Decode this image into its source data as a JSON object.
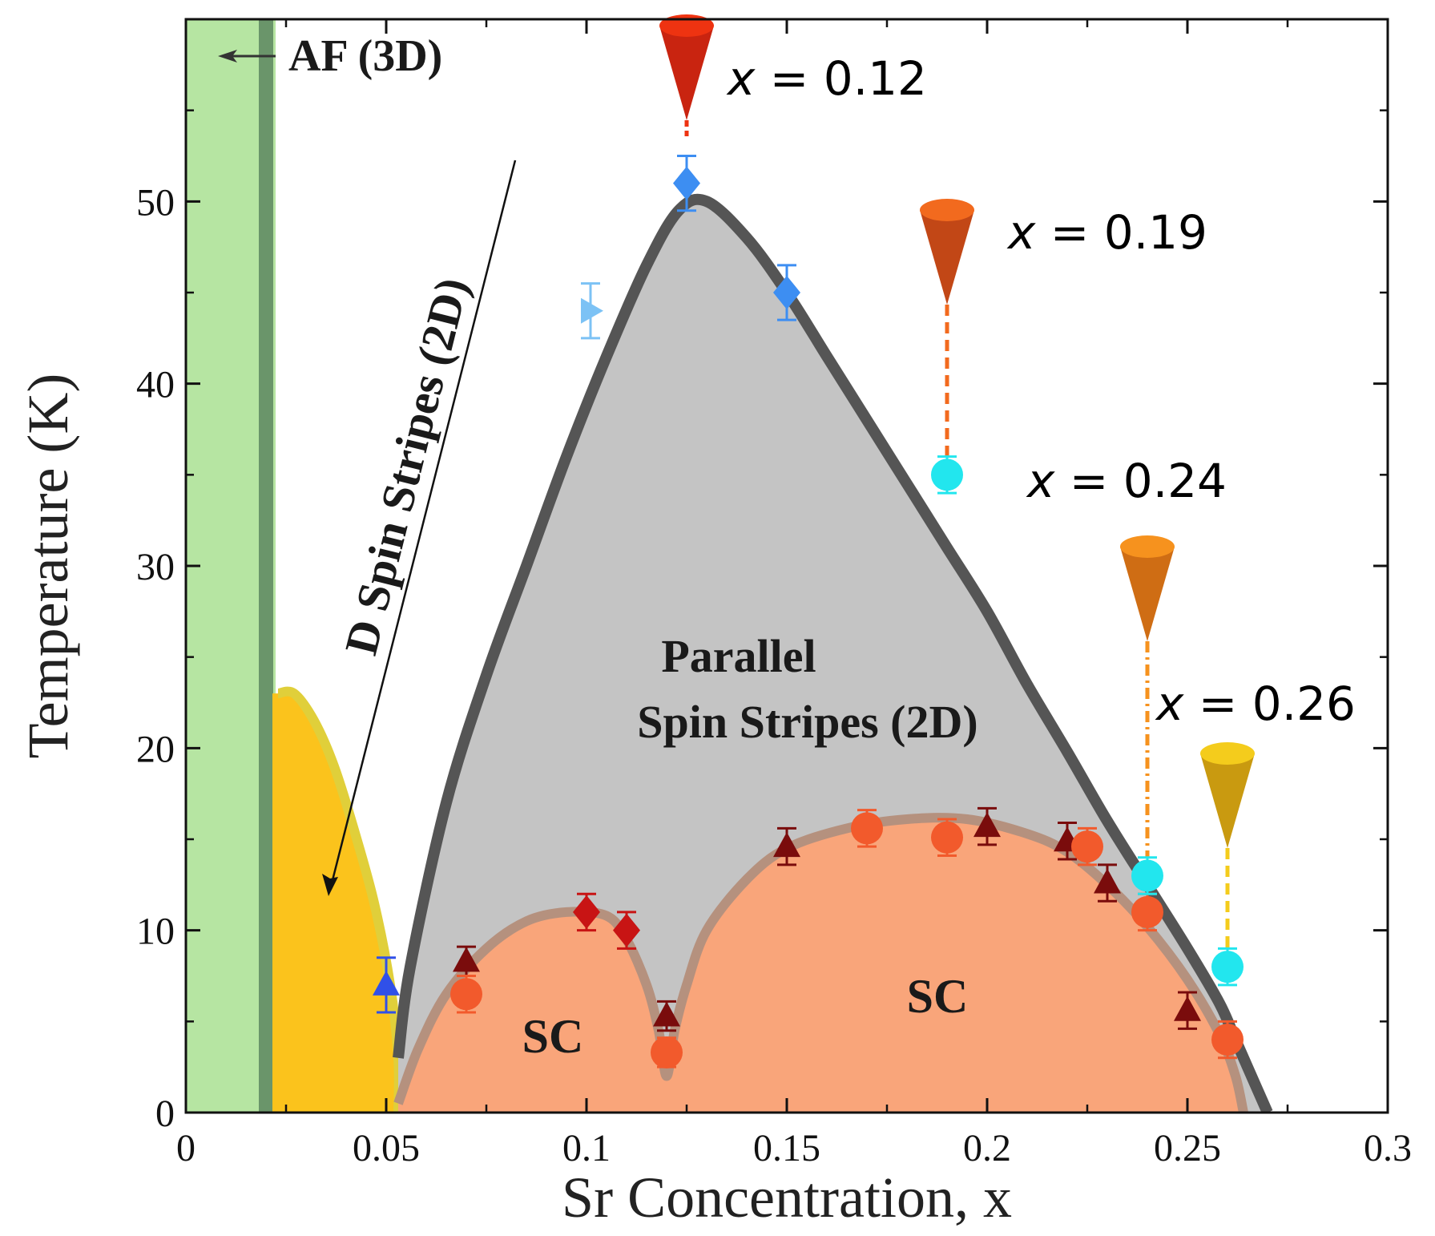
{
  "chart_data": {
    "type": "scatter",
    "xlabel": "Sr Concentration, x",
    "ylabel": "Temperature (K)",
    "xlim": [
      0,
      0.3
    ],
    "ylim": [
      0,
      60
    ],
    "x_ticks": [
      "0",
      "0.05",
      "0.1",
      "0.15",
      "0.2",
      "0.25",
      "0.3"
    ],
    "x_tick_values": [
      0,
      0.05,
      0.1,
      0.15,
      0.2,
      0.25,
      0.3
    ],
    "y_ticks": [
      "0",
      "10",
      "20",
      "30",
      "40",
      "50"
    ],
    "y_tick_values": [
      0,
      10,
      20,
      30,
      40,
      50
    ],
    "colors": {
      "af": "#b6e5a2",
      "af_line": "#6a956a",
      "diagonal": "#fbc31c",
      "diagonal_edge": "#e0cf3a",
      "parallel": "#c4c4c4",
      "parallel_line": "#555555",
      "sc": "#f9a57a",
      "sc_line": "#b5917e"
    },
    "regions": {
      "af": "AF (3D)",
      "diagonal_prefix": "D",
      "diagonal_main": " Spin Stripes (2D)",
      "parallel_line1": "Parallel",
      "parallel_line2": "Spin Stripes (2D)",
      "sc_left": "SC",
      "sc_right": "SC"
    },
    "series": [
      {
        "name": "blue-diamonds",
        "marker": "diamond",
        "color": "#3d8ef2",
        "points": [
          {
            "x": 0.125,
            "y": 51,
            "err": 1.5
          },
          {
            "x": 0.15,
            "y": 45,
            "err": 1.5
          }
        ]
      },
      {
        "name": "light-blue-triangle",
        "marker": "triangle-right",
        "color": "#7cc2f5",
        "points": [
          {
            "x": 0.101,
            "y": 44,
            "err": 1.5
          }
        ]
      },
      {
        "name": "blue-triangle",
        "marker": "triangle-up",
        "color": "#3050e8",
        "points": [
          {
            "x": 0.05,
            "y": 7,
            "err": 1.5
          }
        ]
      },
      {
        "name": "red-diamonds",
        "marker": "diamond",
        "color": "#c81414",
        "points": [
          {
            "x": 0.1,
            "y": 11,
            "err": 1
          },
          {
            "x": 0.11,
            "y": 10,
            "err": 1
          }
        ]
      },
      {
        "name": "dark-red-triangles",
        "marker": "triangle-up",
        "color": "#7a0c0c",
        "points": [
          {
            "x": 0.07,
            "y": 8.3,
            "err": 0.8
          },
          {
            "x": 0.12,
            "y": 5.3,
            "err": 0.8
          },
          {
            "x": 0.15,
            "y": 14.6,
            "err": 1
          },
          {
            "x": 0.2,
            "y": 15.7,
            "err": 1
          },
          {
            "x": 0.22,
            "y": 14.9,
            "err": 1
          },
          {
            "x": 0.23,
            "y": 12.6,
            "err": 1
          },
          {
            "x": 0.25,
            "y": 5.6,
            "err": 1
          }
        ]
      },
      {
        "name": "orange-circles",
        "marker": "circle",
        "color": "#f25a2c",
        "points": [
          {
            "x": 0.07,
            "y": 6.5,
            "err": 1
          },
          {
            "x": 0.12,
            "y": 3.3,
            "err": 0.8
          },
          {
            "x": 0.17,
            "y": 15.6,
            "err": 1
          },
          {
            "x": 0.19,
            "y": 15.1,
            "err": 1
          },
          {
            "x": 0.225,
            "y": 14.6,
            "err": 1
          },
          {
            "x": 0.24,
            "y": 11,
            "err": 1
          },
          {
            "x": 0.26,
            "y": 4,
            "err": 1
          }
        ]
      },
      {
        "name": "cyan-circles",
        "marker": "circle",
        "color": "#22e6ee",
        "points": [
          {
            "x": 0.19,
            "y": 35,
            "err": 1
          },
          {
            "x": 0.24,
            "y": 13,
            "err": 1
          },
          {
            "x": 0.26,
            "y": 8,
            "err": 1
          }
        ]
      }
    ],
    "parallel_boundary": [
      [
        0.053,
        3
      ],
      [
        0.056,
        8
      ],
      [
        0.065,
        17
      ],
      [
        0.075,
        24
      ],
      [
        0.085,
        30
      ],
      [
        0.095,
        36
      ],
      [
        0.105,
        41.5
      ],
      [
        0.115,
        46.5
      ],
      [
        0.123,
        49.5
      ],
      [
        0.13,
        50
      ],
      [
        0.14,
        48
      ],
      [
        0.15,
        45
      ],
      [
        0.16,
        41.5
      ],
      [
        0.17,
        38
      ],
      [
        0.18,
        34.5
      ],
      [
        0.19,
        31
      ],
      [
        0.2,
        27.5
      ],
      [
        0.21,
        23.5
      ],
      [
        0.22,
        19.8
      ],
      [
        0.23,
        16
      ],
      [
        0.24,
        12.5
      ],
      [
        0.25,
        9
      ],
      [
        0.258,
        6
      ],
      [
        0.262,
        4
      ],
      [
        0.267,
        1.5
      ],
      [
        0.27,
        0
      ]
    ],
    "sc_boundary": [
      [
        0.053,
        0.5
      ],
      [
        0.058,
        3.5
      ],
      [
        0.065,
        6.5
      ],
      [
        0.075,
        9
      ],
      [
        0.085,
        10.5
      ],
      [
        0.095,
        11
      ],
      [
        0.105,
        10.8
      ],
      [
        0.11,
        9.5
      ],
      [
        0.115,
        7
      ],
      [
        0.118,
        4.5
      ],
      [
        0.12,
        2
      ],
      [
        0.122,
        4.5
      ],
      [
        0.125,
        7
      ],
      [
        0.13,
        10
      ],
      [
        0.14,
        12.8
      ],
      [
        0.15,
        14.5
      ],
      [
        0.165,
        15.6
      ],
      [
        0.18,
        16.1
      ],
      [
        0.195,
        16.1
      ],
      [
        0.21,
        15.3
      ],
      [
        0.22,
        14.3
      ],
      [
        0.23,
        12.5
      ],
      [
        0.24,
        10.2
      ],
      [
        0.25,
        7.3
      ],
      [
        0.258,
        4.3
      ],
      [
        0.262,
        2
      ],
      [
        0.264,
        0
      ]
    ],
    "diagonal_boundary": [
      [
        0.023,
        23
      ],
      [
        0.027,
        23
      ],
      [
        0.032,
        21.5
      ],
      [
        0.037,
        19
      ],
      [
        0.042,
        15.5
      ],
      [
        0.047,
        11.5
      ],
      [
        0.051,
        7
      ],
      [
        0.053,
        3
      ],
      [
        0.053,
        0
      ]
    ],
    "af_boundary_x": 0.02,
    "probes": [
      {
        "label": "x = 0.12",
        "x": 0.125,
        "y": 51,
        "color": "#c92410",
        "top": "#ee3311",
        "line": "none"
      },
      {
        "label": "x = 0.19",
        "x": 0.19,
        "y": 35,
        "color": "#c24716",
        "top": "#f26a1e",
        "line": "dash"
      },
      {
        "label": "x = 0.24",
        "x": 0.24,
        "y": 13,
        "color": "#cf6d14",
        "top": "#f6921e",
        "line": "dashdot"
      },
      {
        "label": "x = 0.26",
        "x": 0.26,
        "y": 8,
        "color": "#c99a10",
        "top": "#f4cc1c",
        "line": "dash"
      }
    ]
  }
}
